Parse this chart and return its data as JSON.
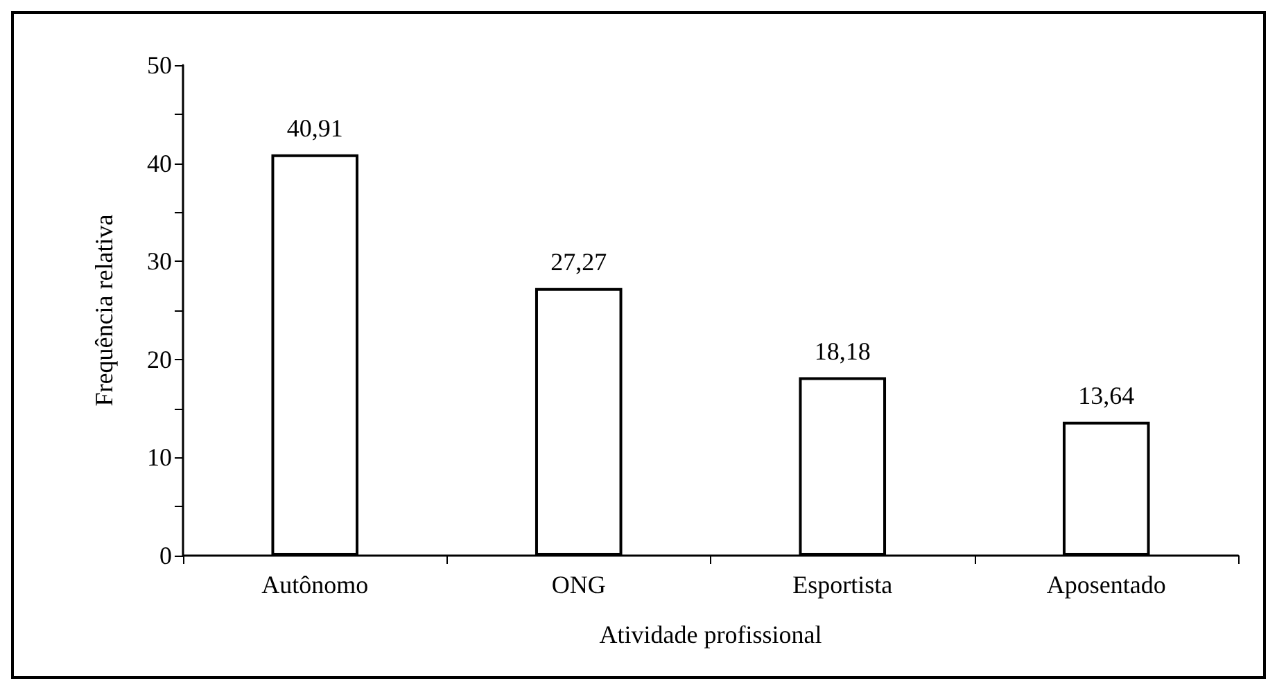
{
  "chart_data": {
    "type": "bar",
    "xlabel": "Atividade profissional",
    "ylabel": "Frequência relativa",
    "categories": [
      "Autônomo",
      "ONG",
      "Esportista",
      "Aposentado"
    ],
    "values": [
      40.91,
      27.27,
      18.18,
      13.64
    ],
    "value_labels": [
      "40,91",
      "27,27",
      "18,18",
      "13,64"
    ],
    "color": "#ffffff",
    "ylim": [
      0,
      50
    ],
    "yticks": [
      0,
      {
        "value": 5,
        "label": null
      },
      10,
      {
        "value": 15,
        "label": null
      },
      20,
      {
        "value": 25,
        "label": null
      },
      30,
      {
        "value": 35,
        "label": null
      },
      40,
      {
        "value": 45,
        "label": null
      },
      50
    ],
    "grid": false
  }
}
